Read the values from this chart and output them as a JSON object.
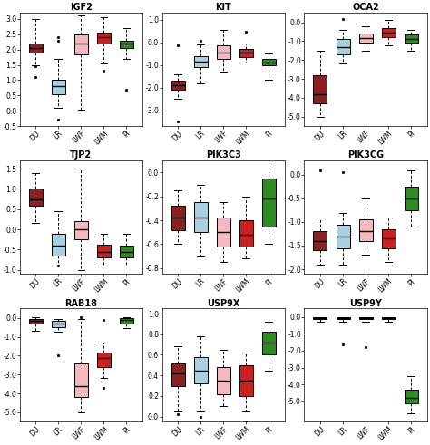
{
  "titles": [
    "IGF2",
    "KIT",
    "OCA2",
    "TJP2",
    "PIK3C3",
    "PIK3CG",
    "RAB18",
    "USP9X",
    "USP9Y"
  ],
  "breeds": [
    "DU",
    "LR",
    "LWF",
    "LWM",
    "PI"
  ],
  "colors": [
    "#8B2020",
    "#A8D0E0",
    "#F4B8C0",
    "#CC2020",
    "#2E8B22"
  ],
  "box_data": {
    "IGF2": {
      "DU": {
        "med": 2.05,
        "q1": 1.9,
        "q3": 2.2,
        "whislo": 1.5,
        "whishi": 3.0,
        "fliers": [
          1.1,
          1.45
        ]
      },
      "LR": {
        "med": 0.8,
        "q1": 0.55,
        "q3": 1.0,
        "whislo": 0.1,
        "whishi": 1.7,
        "fliers": [
          2.3,
          2.4,
          -0.3
        ]
      },
      "LWF": {
        "med": 2.2,
        "q1": 1.85,
        "q3": 2.5,
        "whislo": 0.05,
        "whishi": 3.1,
        "fliers": []
      },
      "LWM": {
        "med": 2.4,
        "q1": 2.2,
        "q3": 2.55,
        "whislo": 1.55,
        "whishi": 3.05,
        "fliers": [
          1.3
        ]
      },
      "PI": {
        "med": 2.2,
        "q1": 2.05,
        "q3": 2.3,
        "whislo": 1.7,
        "whishi": 2.7,
        "fliers": [
          0.7
        ]
      }
    },
    "KIT": {
      "DU": {
        "med": -1.9,
        "q1": -2.1,
        "q3": -1.7,
        "whislo": -2.5,
        "whishi": -1.4,
        "fliers": [
          -0.15,
          -3.5
        ]
      },
      "LR": {
        "med": -0.85,
        "q1": -1.1,
        "q3": -0.6,
        "whislo": -1.8,
        "whishi": -0.1,
        "fliers": [
          0.05
        ]
      },
      "LWF": {
        "med": -0.45,
        "q1": -0.75,
        "q3": -0.15,
        "whislo": -1.3,
        "whishi": 0.55,
        "fliers": []
      },
      "LWM": {
        "med": -0.45,
        "q1": -0.65,
        "q3": -0.3,
        "whislo": -0.9,
        "whishi": -0.05,
        "fliers": [
          0.45
        ]
      },
      "PI": {
        "med": -0.9,
        "q1": -1.0,
        "q3": -0.75,
        "whislo": -1.65,
        "whishi": -0.5,
        "fliers": []
      }
    },
    "OCA2": {
      "DU": {
        "med": -3.8,
        "q1": -4.3,
        "q3": -2.8,
        "whislo": -5.0,
        "whishi": -1.5,
        "fliers": []
      },
      "LR": {
        "med": -1.3,
        "q1": -1.7,
        "q3": -0.9,
        "whislo": -2.2,
        "whishi": -0.4,
        "fliers": [
          0.15
        ]
      },
      "LWF": {
        "med": -0.85,
        "q1": -1.1,
        "q3": -0.6,
        "whislo": -1.5,
        "whishi": -0.2,
        "fliers": []
      },
      "LWM": {
        "med": -0.55,
        "q1": -0.8,
        "q3": -0.3,
        "whislo": -1.2,
        "whishi": 0.1,
        "fliers": []
      },
      "PI": {
        "med": -0.9,
        "q1": -1.1,
        "q3": -0.65,
        "whislo": -1.5,
        "whishi": -0.4,
        "fliers": []
      }
    },
    "TJP2": {
      "DU": {
        "med": 0.75,
        "q1": 0.58,
        "q3": 1.0,
        "whislo": 0.15,
        "whishi": 1.4,
        "fliers": []
      },
      "LR": {
        "med": -0.4,
        "q1": -0.65,
        "q3": -0.1,
        "whislo": -0.9,
        "whishi": 0.45,
        "fliers": [
          -0.9
        ]
      },
      "LWF": {
        "med": 0.0,
        "q1": -0.25,
        "q3": 0.2,
        "whislo": -1.0,
        "whishi": 1.5,
        "fliers": []
      },
      "LWM": {
        "med": -0.55,
        "q1": -0.7,
        "q3": -0.38,
        "whislo": -0.9,
        "whishi": -0.12,
        "fliers": []
      },
      "PI": {
        "med": -0.55,
        "q1": -0.7,
        "q3": -0.4,
        "whislo": -0.9,
        "whishi": -0.1,
        "fliers": []
      }
    },
    "PIK3C3": {
      "DU": {
        "med": -0.38,
        "q1": -0.48,
        "q3": -0.28,
        "whislo": -0.6,
        "whishi": -0.15,
        "fliers": []
      },
      "LR": {
        "med": -0.38,
        "q1": -0.5,
        "q3": -0.25,
        "whislo": -0.7,
        "whishi": -0.1,
        "fliers": []
      },
      "LWF": {
        "med": -0.5,
        "q1": -0.62,
        "q3": -0.38,
        "whislo": -0.75,
        "whishi": -0.25,
        "fliers": []
      },
      "LWM": {
        "med": -0.52,
        "q1": -0.62,
        "q3": -0.4,
        "whislo": -0.72,
        "whishi": -0.2,
        "fliers": []
      },
      "PI": {
        "med": -0.22,
        "q1": -0.45,
        "q3": -0.05,
        "whislo": -0.6,
        "whishi": 0.45,
        "fliers": []
      }
    },
    "PIK3CG": {
      "DU": {
        "med": -1.4,
        "q1": -1.6,
        "q3": -1.2,
        "whislo": -1.9,
        "whishi": -0.9,
        "fliers": [
          0.1
        ]
      },
      "LR": {
        "med": -1.3,
        "q1": -1.55,
        "q3": -1.05,
        "whislo": -1.9,
        "whishi": -0.8,
        "fliers": [
          0.05
        ]
      },
      "LWF": {
        "med": -1.2,
        "q1": -1.4,
        "q3": -0.95,
        "whislo": -1.7,
        "whishi": -0.5,
        "fliers": []
      },
      "LWM": {
        "med": -1.35,
        "q1": -1.55,
        "q3": -1.15,
        "whislo": -1.85,
        "whishi": -0.9,
        "fliers": []
      },
      "PI": {
        "med": -0.5,
        "q1": -0.75,
        "q3": -0.25,
        "whislo": -1.1,
        "whishi": 0.1,
        "fliers": []
      }
    },
    "RAB18": {
      "DU": {
        "med": -0.15,
        "q1": -0.3,
        "q3": -0.05,
        "whislo": -0.7,
        "whishi": 0.05,
        "fliers": []
      },
      "LR": {
        "med": -0.3,
        "q1": -0.5,
        "q3": -0.15,
        "whislo": -0.75,
        "whishi": -0.05,
        "fliers": [
          -2.0
        ]
      },
      "LWF": {
        "med": -3.6,
        "q1": -4.2,
        "q3": -2.4,
        "whislo": -5.0,
        "whishi": -0.05,
        "fliers": [
          0.05
        ]
      },
      "LWM": {
        "med": -2.1,
        "q1": -2.6,
        "q3": -1.85,
        "whislo": -3.2,
        "whishi": -1.3,
        "fliers": [
          -0.1,
          -3.7
        ]
      },
      "PI": {
        "med": -0.1,
        "q1": -0.3,
        "q3": -0.03,
        "whislo": -0.55,
        "whishi": 0.05,
        "fliers": []
      }
    },
    "USP9X": {
      "DU": {
        "med": 0.42,
        "q1": 0.3,
        "q3": 0.52,
        "whislo": 0.05,
        "whishi": 0.68,
        "fliers": [
          0.02
        ]
      },
      "LR": {
        "med": 0.45,
        "q1": 0.32,
        "q3": 0.58,
        "whislo": 0.05,
        "whishi": 0.78,
        "fliers": [
          0.0
        ]
      },
      "LWF": {
        "med": 0.35,
        "q1": 0.22,
        "q3": 0.48,
        "whislo": 0.1,
        "whishi": 0.65,
        "fliers": []
      },
      "LWM": {
        "med": 0.35,
        "q1": 0.2,
        "q3": 0.5,
        "whislo": 0.05,
        "whishi": 0.62,
        "fliers": [
          -0.05
        ]
      },
      "PI": {
        "med": 0.72,
        "q1": 0.6,
        "q3": 0.82,
        "whislo": 0.45,
        "whishi": 0.92,
        "fliers": []
      }
    },
    "USP9Y": {
      "DU": {
        "med": -0.08,
        "q1": -0.15,
        "q3": -0.03,
        "whislo": -0.3,
        "whishi": -0.01,
        "fliers": []
      },
      "LR": {
        "med": -0.08,
        "q1": -0.15,
        "q3": -0.03,
        "whislo": -0.3,
        "whishi": -0.01,
        "fliers": [
          -1.6
        ]
      },
      "LWF": {
        "med": -0.08,
        "q1": -0.15,
        "q3": -0.03,
        "whislo": -0.3,
        "whishi": -0.01,
        "fliers": [
          -1.8
        ]
      },
      "LWM": {
        "med": -0.08,
        "q1": -0.15,
        "q3": -0.03,
        "whislo": -0.3,
        "whishi": -0.01,
        "fliers": []
      },
      "PI": {
        "med": -4.8,
        "q1": -5.1,
        "q3": -4.3,
        "whislo": -5.7,
        "whishi": -3.5,
        "fliers": []
      }
    }
  },
  "ylims": {
    "IGF2": [
      -0.5,
      3.2
    ],
    "KIT": [
      -3.7,
      1.3
    ],
    "OCA2": [
      -5.5,
      0.5
    ],
    "TJP2": [
      -1.1,
      1.7
    ],
    "PIK3C3": [
      -0.85,
      0.1
    ],
    "PIK3CG": [
      -2.1,
      0.3
    ],
    "RAB18": [
      -5.5,
      0.5
    ],
    "USP9X": [
      -0.05,
      1.05
    ],
    "USP9Y": [
      -6.2,
      0.5
    ]
  },
  "yticks": {
    "IGF2": [
      -0.5,
      0.0,
      0.5,
      1.0,
      1.5,
      2.0,
      2.5,
      3.0
    ],
    "KIT": [
      -3.0,
      -2.0,
      -1.0,
      0.0,
      1.0
    ],
    "OCA2": [
      -5.0,
      -4.0,
      -3.0,
      -2.0,
      -1.0,
      0.0
    ],
    "TJP2": [
      -1.0,
      -0.5,
      0.0,
      0.5,
      1.0,
      1.5
    ],
    "PIK3C3": [
      -0.8,
      -0.6,
      -0.4,
      -0.2,
      0.0
    ],
    "PIK3CG": [
      -2.0,
      -1.5,
      -1.0,
      -0.5,
      0.0
    ],
    "RAB18": [
      -5.0,
      -4.0,
      -3.0,
      -2.0,
      -1.0,
      0.0
    ],
    "USP9X": [
      0.0,
      0.2,
      0.4,
      0.6,
      0.8,
      1.0
    ],
    "USP9Y": [
      -5.0,
      -4.0,
      -3.0,
      -2.0,
      -1.0,
      0.0
    ]
  },
  "layout": [
    [
      "IGF2",
      "KIT",
      "OCA2"
    ],
    [
      "TJP2",
      "PIK3C3",
      "PIK3CG"
    ],
    [
      "RAB18",
      "USP9X",
      "USP9Y"
    ]
  ]
}
